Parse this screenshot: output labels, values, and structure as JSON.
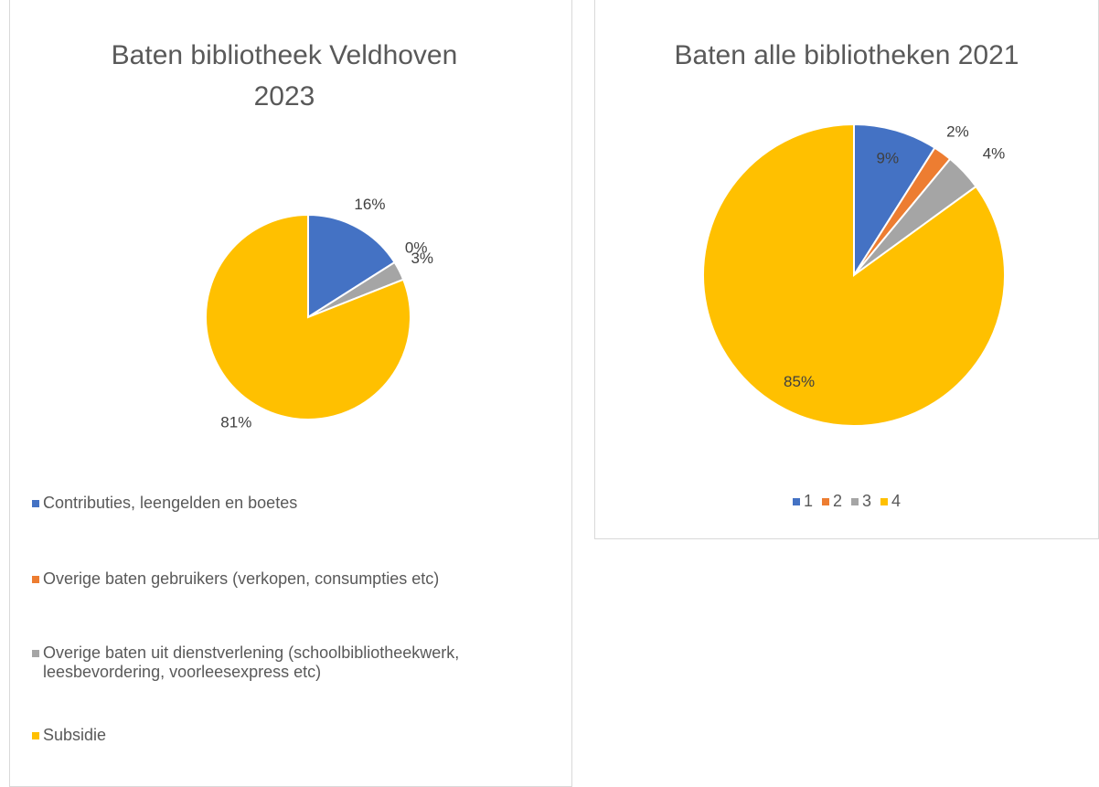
{
  "chart_data": [
    {
      "type": "pie",
      "title": "Baten bibliotheek Veldhoven 2023",
      "categories": [
        "Contributies, leengelden en boetes",
        "Overige baten gebruikers (verkopen, consumpties etc)",
        "Overige baten uit dienstverlening (schoolbibliotheekwerk, leesbevordering, voorleesexpress etc)",
        "Subsidie"
      ],
      "values": [
        16,
        0,
        3,
        81
      ],
      "colors": [
        "#4472c4",
        "#ed7d31",
        "#a5a5a5",
        "#ffc000"
      ],
      "legend": "bottom"
    },
    {
      "type": "pie",
      "title": "Baten alle bibliotheken 2021",
      "categories": [
        "1",
        "2",
        "3",
        "4"
      ],
      "values": [
        9,
        2,
        4,
        85
      ],
      "colors": [
        "#4472c4",
        "#ed7d31",
        "#a5a5a5",
        "#ffc000"
      ],
      "legend": "bottom"
    }
  ]
}
